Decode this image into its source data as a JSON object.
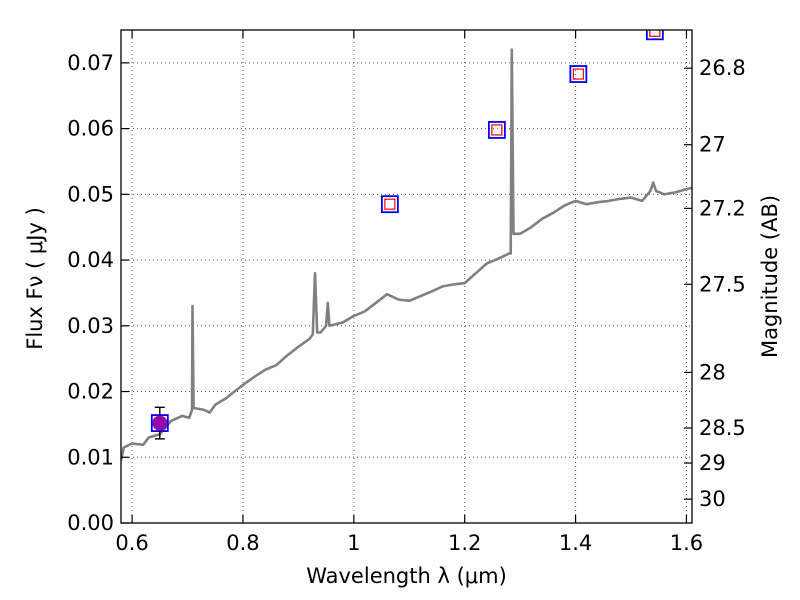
{
  "chart_data": {
    "type": "line",
    "xlabel": "Wavelength  λ (μm)",
    "ylabel": "Flux  Fν  ( μJy )",
    "y2label": "Magnitude (AB)",
    "xlim": [
      0.58,
      1.61
    ],
    "ylim": [
      0.0,
      0.075
    ],
    "grid": true,
    "x_ticks": [
      0.6,
      0.8,
      1.0,
      1.2,
      1.4,
      1.6
    ],
    "x_tick_labels": [
      "0.6",
      "0.8",
      "1",
      "1.2",
      "1.4",
      "1.6"
    ],
    "y_ticks": [
      0.0,
      0.01,
      0.02,
      0.03,
      0.04,
      0.05,
      0.06,
      0.07
    ],
    "y_tick_labels": [
      "0.00",
      "0.01",
      "0.02",
      "0.03",
      "0.04",
      "0.05",
      "0.06",
      "0.07"
    ],
    "mag_ticks": [
      26.8,
      27,
      27.2,
      27.5,
      28,
      28.5,
      29,
      30
    ],
    "mag_tick_labels": [
      "26.8",
      "27",
      "27.2",
      "27.5",
      "28",
      "28.5",
      "29",
      "30"
    ],
    "colors": {
      "spectrum": "#808080",
      "obs_marker": "#9400aa",
      "box_outer": "#0000ff",
      "box_inner": "#ff0000",
      "grid": "#555555"
    },
    "series": [
      {
        "type": "line",
        "points": [
          [
            0.58,
            0.0095
          ],
          [
            0.585,
            0.0115
          ],
          [
            0.6,
            0.0121
          ],
          [
            0.62,
            0.0119
          ],
          [
            0.63,
            0.013
          ],
          [
            0.65,
            0.0135
          ],
          [
            0.67,
            0.0155
          ],
          [
            0.69,
            0.0163
          ],
          [
            0.703,
            0.016
          ],
          [
            0.708,
            0.0172
          ],
          [
            0.709,
            0.033
          ],
          [
            0.711,
            0.0175
          ],
          [
            0.73,
            0.0172
          ],
          [
            0.74,
            0.0168
          ],
          [
            0.75,
            0.018
          ],
          [
            0.77,
            0.019
          ],
          [
            0.78,
            0.0197
          ],
          [
            0.8,
            0.021
          ],
          [
            0.82,
            0.0222
          ],
          [
            0.84,
            0.0233
          ],
          [
            0.86,
            0.024
          ],
          [
            0.88,
            0.0255
          ],
          [
            0.9,
            0.0268
          ],
          [
            0.92,
            0.028
          ],
          [
            0.926,
            0.0287
          ],
          [
            0.93,
            0.038
          ],
          [
            0.934,
            0.029
          ],
          [
            0.94,
            0.029
          ],
          [
            0.95,
            0.03
          ],
          [
            0.953,
            0.0335
          ],
          [
            0.956,
            0.03
          ],
          [
            0.98,
            0.0305
          ],
          [
            1.0,
            0.0315
          ],
          [
            1.02,
            0.0322
          ],
          [
            1.04,
            0.0335
          ],
          [
            1.06,
            0.0348
          ],
          [
            1.08,
            0.034
          ],
          [
            1.1,
            0.0338
          ],
          [
            1.12,
            0.0345
          ],
          [
            1.14,
            0.0352
          ],
          [
            1.16,
            0.036
          ],
          [
            1.18,
            0.0363
          ],
          [
            1.2,
            0.0365
          ],
          [
            1.22,
            0.038
          ],
          [
            1.24,
            0.0395
          ],
          [
            1.26,
            0.0402
          ],
          [
            1.28,
            0.041
          ],
          [
            1.283,
            0.041
          ],
          [
            1.285,
            0.072
          ],
          [
            1.288,
            0.044
          ],
          [
            1.3,
            0.044
          ],
          [
            1.32,
            0.045
          ],
          [
            1.34,
            0.0463
          ],
          [
            1.36,
            0.0472
          ],
          [
            1.38,
            0.0483
          ],
          [
            1.4,
            0.049
          ],
          [
            1.42,
            0.0485
          ],
          [
            1.44,
            0.0488
          ],
          [
            1.46,
            0.049
          ],
          [
            1.48,
            0.0493
          ],
          [
            1.5,
            0.0495
          ],
          [
            1.52,
            0.049
          ],
          [
            1.535,
            0.0505
          ],
          [
            1.54,
            0.0518
          ],
          [
            1.545,
            0.0505
          ],
          [
            1.56,
            0.05
          ],
          [
            1.58,
            0.0503
          ],
          [
            1.6,
            0.0508
          ],
          [
            1.61,
            0.051
          ]
        ]
      },
      {
        "type": "scatter",
        "points": [
          [
            0.65,
            0.0152
          ]
        ],
        "yerr": [
          0.0024
        ]
      },
      {
        "type": "scatter",
        "points": [
          [
            0.65,
            0.0152
          ],
          [
            1.065,
            0.0485
          ],
          [
            1.258,
            0.0598
          ],
          [
            1.405,
            0.0683
          ],
          [
            1.543,
            0.0748
          ]
        ]
      }
    ]
  }
}
